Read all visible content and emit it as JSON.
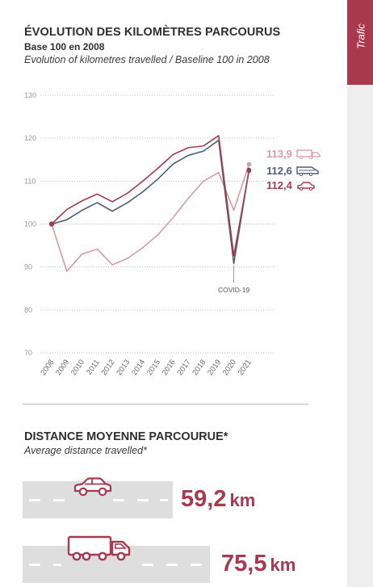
{
  "side_tab": {
    "label": "Trafic"
  },
  "header": {
    "title": "ÉVOLUTION DES KILOMÈTRES PARCOURUS",
    "subtitle": "Base 100 en 2008",
    "subtitle_en": "Evolution of kilometres travelled / Baseline 100 in 2008"
  },
  "colors": {
    "trucks": "#d99aa2",
    "vans": "#4e5d73",
    "cars": "#a8394e",
    "grid": "#bdbdbd",
    "axis_text": "#9a9a9a"
  },
  "chart_data": {
    "type": "line",
    "x": [
      "2008",
      "2009",
      "2010",
      "2011",
      "2012",
      "2013",
      "2014",
      "2015",
      "2016",
      "2017",
      "2018",
      "2019",
      "2020",
      "2021"
    ],
    "ylim": [
      70,
      130
    ],
    "yticks": [
      70,
      80,
      90,
      100,
      110,
      120,
      130
    ],
    "grid": true,
    "series": [
      {
        "key": "trucks",
        "icon": "truck-icon",
        "end_label": "113,9",
        "values": [
          100,
          89,
          93,
          94.2,
          90.5,
          92,
          94.5,
          97.5,
          101.5,
          106,
          110,
          112,
          103.2,
          113.9
        ]
      },
      {
        "key": "vans",
        "icon": "van-icon",
        "end_label": "112,6",
        "values": [
          100,
          101,
          103.2,
          105,
          103,
          105,
          107.5,
          110.5,
          114,
          116,
          117,
          119.5,
          90.8,
          112.6
        ]
      },
      {
        "key": "cars",
        "icon": "car-icon",
        "end_label": "112,4",
        "values": [
          100,
          103.4,
          105.4,
          107,
          105.2,
          107.2,
          110,
          113,
          116.2,
          117.8,
          118.2,
          120.6,
          92.6,
          112.4
        ]
      }
    ],
    "annotation": {
      "x": "2020",
      "text": "COVID-19"
    }
  },
  "section2": {
    "title": "DISTANCE MOYENNE PARCOURUE*",
    "subtitle": "Average distance travelled*",
    "cars": {
      "value": "59,2",
      "unit": "km",
      "icon": "car-icon"
    },
    "trucks": {
      "value": "75,5",
      "unit": "km",
      "icon": "truck-icon"
    }
  }
}
